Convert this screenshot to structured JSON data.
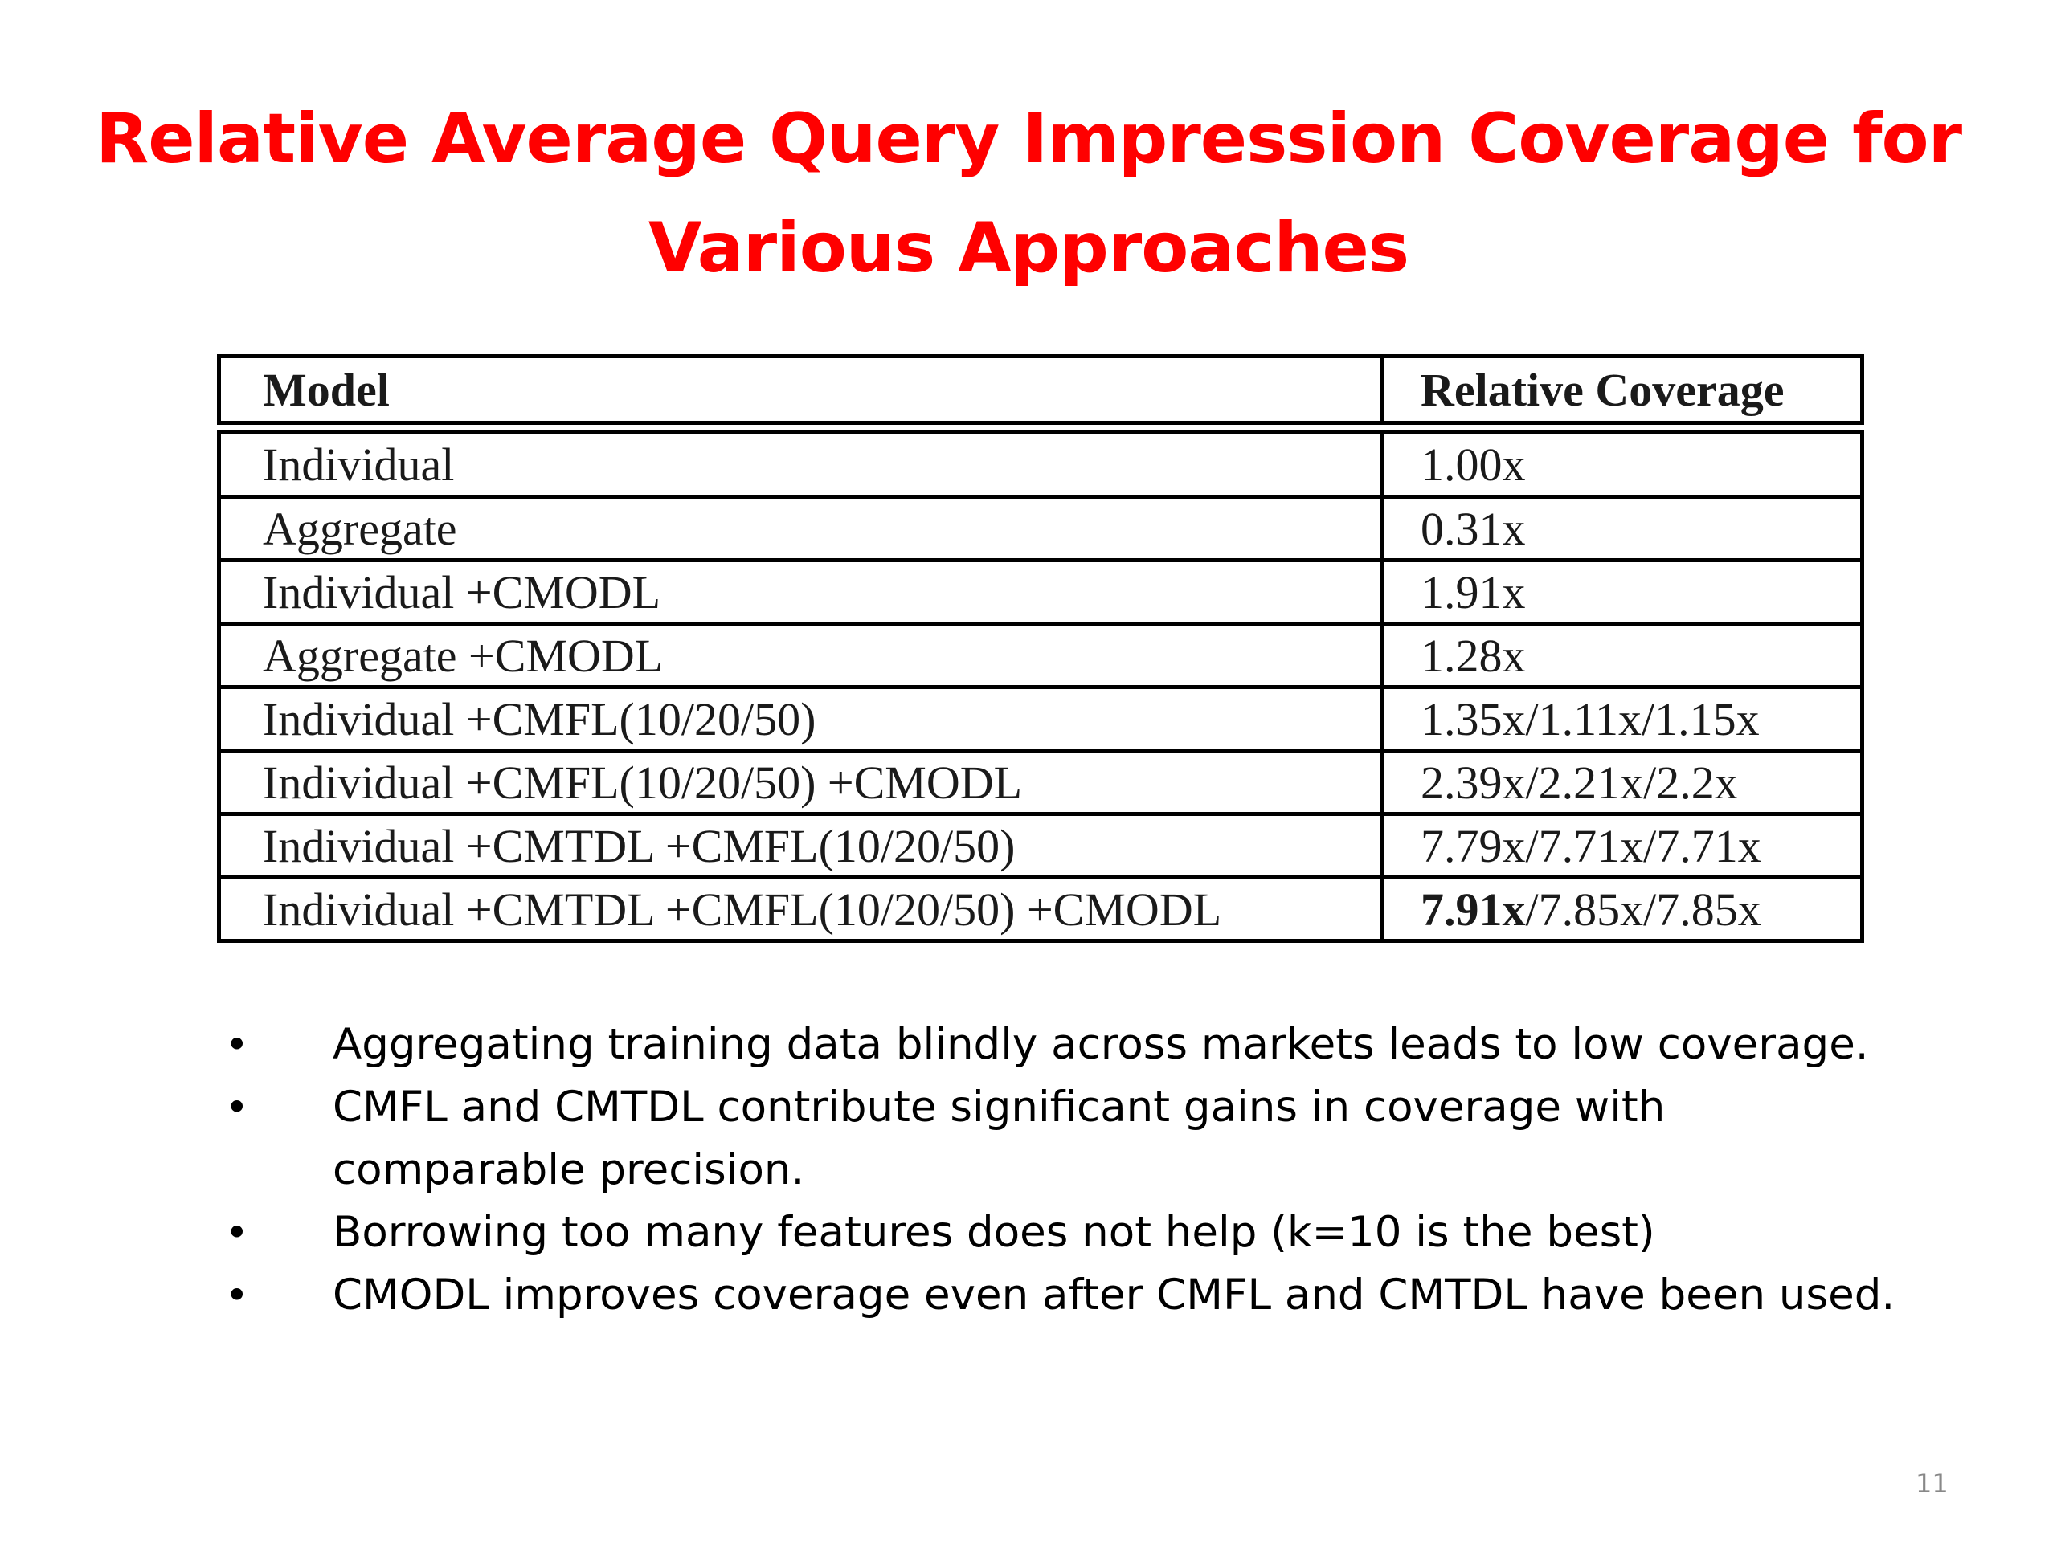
{
  "slide": {
    "title_line1": "Relative Average Query Impression Coverage for",
    "title_line2": "Various Approaches",
    "page_number": "11"
  },
  "table": {
    "headers": [
      "Model",
      "Relative Coverage"
    ],
    "rows": [
      {
        "model": "Individual",
        "coverage": "1.00x"
      },
      {
        "model": "Aggregate",
        "coverage": "0.31x"
      },
      {
        "model": "Individual +CMODL",
        "coverage": "1.91x"
      },
      {
        "model": "Aggregate +CMODL",
        "coverage": "1.28x"
      },
      {
        "model": "Individual +CMFL(10/20/50)",
        "coverage": "1.35x/1.11x/1.15x"
      },
      {
        "model": "Individual +CMFL(10/20/50) +CMODL",
        "coverage": "2.39x/2.21x/2.2x"
      },
      {
        "model": "Individual +CMTDL +CMFL(10/20/50)",
        "coverage": "7.79x/7.71x/7.71x"
      },
      {
        "model": "Individual +CMTDL +CMFL(10/20/50) +CMODL",
        "coverage_best": "7.91x",
        "coverage_rest": "/7.85x/7.85x"
      }
    ]
  },
  "bullets": [
    {
      "text": "Aggregating training data blindly across markets leads to low coverage."
    },
    {
      "text": "CMFL and CMTDL contribute significant gains in coverage with comparable precision."
    },
    {
      "text": "Borrowing too many features does not help (k=10 is the best)"
    },
    {
      "text": "CMODL improves coverage even after CMFL and CMTDL have been used."
    }
  ]
}
